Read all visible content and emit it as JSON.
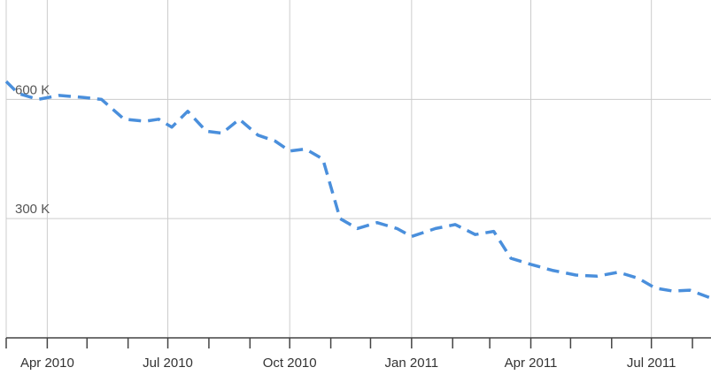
{
  "chart_data": {
    "type": "line",
    "title": "",
    "xlabel": "",
    "ylabel": "",
    "x_axis": {
      "min": "2010-03-01",
      "max": "2011-08-15",
      "ticks": [
        {
          "date": "2010-04-01",
          "label": "Apr 2010"
        },
        {
          "date": "2010-07-01",
          "label": "Jul 2010"
        },
        {
          "date": "2010-10-01",
          "label": "Oct 2010"
        },
        {
          "date": "2011-01-01",
          "label": "Jan 2011"
        },
        {
          "date": "2011-04-01",
          "label": "Apr 2011"
        },
        {
          "date": "2011-07-01",
          "label": "Jul 2011"
        }
      ],
      "minor_ticks": [
        "2010-03-01",
        "2010-05-01",
        "2010-06-01",
        "2010-08-01",
        "2010-09-01",
        "2010-11-01",
        "2010-12-01",
        "2011-02-01",
        "2011-03-01",
        "2011-05-01",
        "2011-06-01",
        "2011-08-01"
      ]
    },
    "y_axis": {
      "min": 0,
      "max": 850000,
      "ticks": [
        {
          "value": 300000,
          "label": "300 K"
        },
        {
          "value": 600000,
          "label": "600 K"
        }
      ]
    },
    "grid": true,
    "legend": "none",
    "series": [
      {
        "color": "#4a8fdc",
        "points": [
          {
            "x": "2010-03-01",
            "y": 645000
          },
          {
            "x": "2010-03-10",
            "y": 615000
          },
          {
            "x": "2010-03-25",
            "y": 600000
          },
          {
            "x": "2010-04-10",
            "y": 610000
          },
          {
            "x": "2010-04-28",
            "y": 605000
          },
          {
            "x": "2010-05-12",
            "y": 600000
          },
          {
            "x": "2010-05-29",
            "y": 550000
          },
          {
            "x": "2010-06-14",
            "y": 545000
          },
          {
            "x": "2010-06-24",
            "y": 550000
          },
          {
            "x": "2010-07-04",
            "y": 530000
          },
          {
            "x": "2010-07-16",
            "y": 570000
          },
          {
            "x": "2010-07-30",
            "y": 520000
          },
          {
            "x": "2010-08-11",
            "y": 515000
          },
          {
            "x": "2010-08-24",
            "y": 550000
          },
          {
            "x": "2010-09-07",
            "y": 510000
          },
          {
            "x": "2010-09-20",
            "y": 495000
          },
          {
            "x": "2010-10-01",
            "y": 470000
          },
          {
            "x": "2010-10-13",
            "y": 475000
          },
          {
            "x": "2010-10-26",
            "y": 450000
          },
          {
            "x": "2010-11-08",
            "y": 300000
          },
          {
            "x": "2010-11-21",
            "y": 275000
          },
          {
            "x": "2010-12-06",
            "y": 290000
          },
          {
            "x": "2010-12-21",
            "y": 275000
          },
          {
            "x": "2011-01-01",
            "y": 255000
          },
          {
            "x": "2011-01-19",
            "y": 275000
          },
          {
            "x": "2011-02-03",
            "y": 285000
          },
          {
            "x": "2011-02-18",
            "y": 260000
          },
          {
            "x": "2011-03-04",
            "y": 268000
          },
          {
            "x": "2011-03-17",
            "y": 200000
          },
          {
            "x": "2011-04-01",
            "y": 185000
          },
          {
            "x": "2011-04-17",
            "y": 170000
          },
          {
            "x": "2011-05-05",
            "y": 158000
          },
          {
            "x": "2011-05-21",
            "y": 155000
          },
          {
            "x": "2011-06-06",
            "y": 165000
          },
          {
            "x": "2011-06-21",
            "y": 150000
          },
          {
            "x": "2011-07-04",
            "y": 125000
          },
          {
            "x": "2011-07-17",
            "y": 118000
          },
          {
            "x": "2011-07-30",
            "y": 120000
          },
          {
            "x": "2011-08-15",
            "y": 100000
          }
        ]
      }
    ]
  }
}
